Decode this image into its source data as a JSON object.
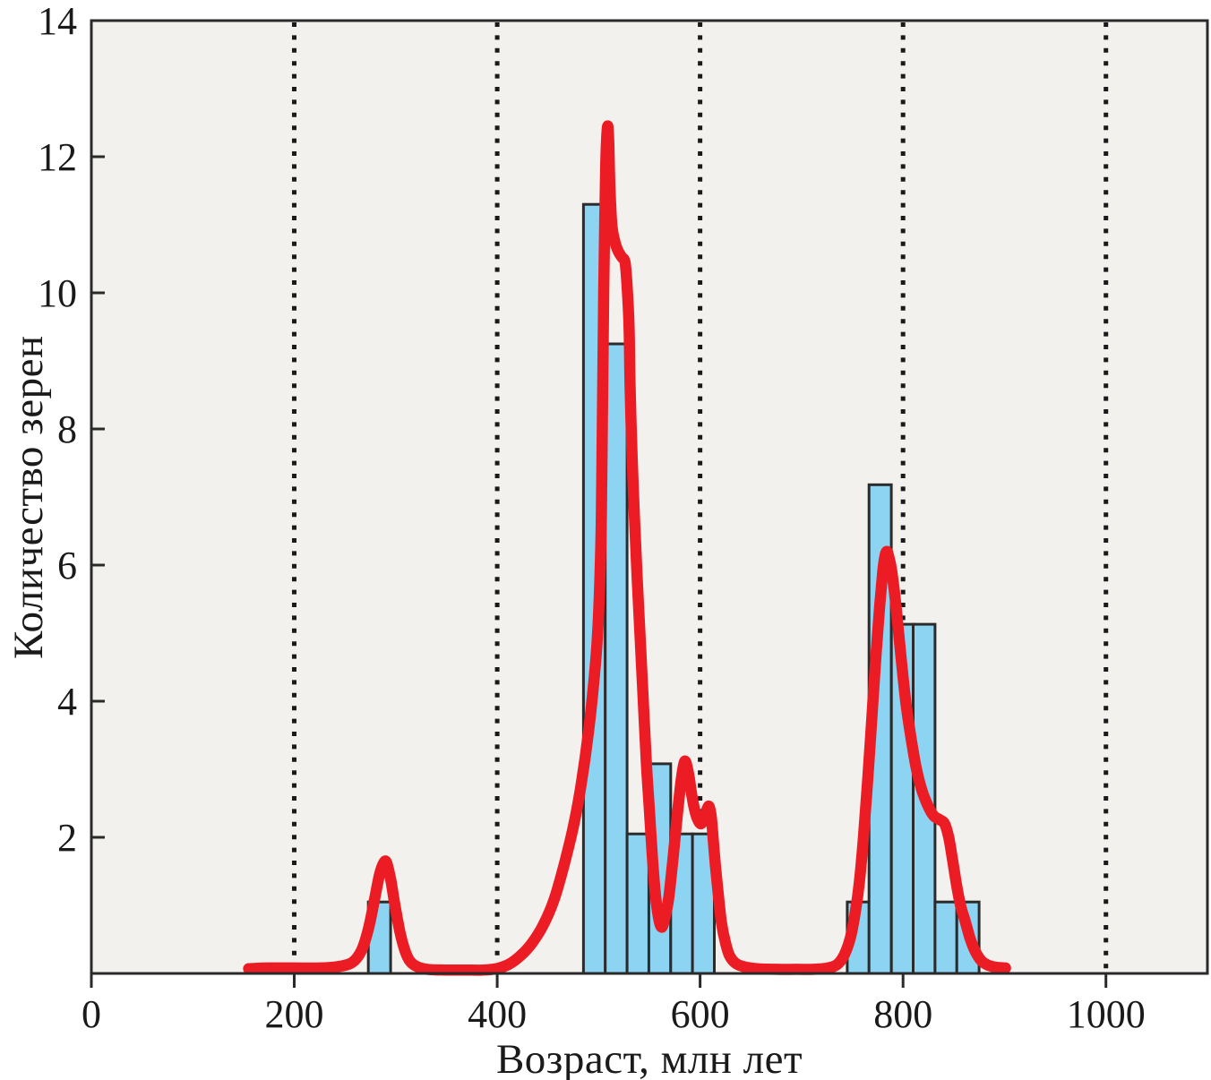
{
  "chart_data": {
    "type": "bar",
    "subtype": "histogram_with_kde_curve",
    "title": "",
    "xlabel": "Возраст, млн лет",
    "ylabel": "Количество зерен",
    "xlim": [
      0,
      1100
    ],
    "ylim": [
      0,
      14
    ],
    "x_ticks": [
      0,
      200,
      400,
      600,
      800,
      1000
    ],
    "x_tick_labels": [
      "0",
      "200",
      "400",
      "600",
      "800",
      "1000"
    ],
    "y_ticks": [
      0,
      2,
      4,
      6,
      8,
      10,
      12,
      14
    ],
    "y_tick_labels": [
      "0",
      "2",
      "4",
      "6",
      "8",
      "10",
      "12",
      "14"
    ],
    "grid": {
      "vertical_dotted_at": [
        200,
        400,
        600,
        800,
        1000
      ],
      "horizontal": false
    },
    "legend_position": "none",
    "bars": [
      {
        "from": 273,
        "to": 295,
        "height": 1.05
      },
      {
        "from": 485,
        "to": 506.5,
        "height": 11.3
      },
      {
        "from": 506.5,
        "to": 528,
        "height": 9.25
      },
      {
        "from": 528,
        "to": 549.5,
        "height": 2.05
      },
      {
        "from": 549.5,
        "to": 571,
        "height": 3.08
      },
      {
        "from": 571,
        "to": 592.5,
        "height": 2.05
      },
      {
        "from": 592.5,
        "to": 614,
        "height": 2.05
      },
      {
        "from": 745,
        "to": 766.5,
        "height": 1.05
      },
      {
        "from": 766.5,
        "to": 788.5,
        "height": 7.18
      },
      {
        "from": 788.5,
        "to": 810,
        "height": 5.13
      },
      {
        "from": 810,
        "to": 831.5,
        "height": 5.13
      },
      {
        "from": 831.5,
        "to": 853,
        "height": 1.05
      },
      {
        "from": 853,
        "to": 875,
        "height": 1.05
      }
    ],
    "series": [
      {
        "name": "kde-curve",
        "type": "line",
        "peaks_approx": [
          {
            "age": 290,
            "value": 1.63
          },
          {
            "age": 509,
            "value": 12.45
          },
          {
            "age": 585,
            "value": 3.1
          },
          {
            "age": 609,
            "value": 2.45
          },
          {
            "age": 784,
            "value": 6.2
          }
        ],
        "points": [
          [
            155,
            0.07
          ],
          [
            175,
            0.08
          ],
          [
            200,
            0.08
          ],
          [
            225,
            0.08
          ],
          [
            243,
            0.1
          ],
          [
            257,
            0.16
          ],
          [
            266,
            0.33
          ],
          [
            273,
            0.65
          ],
          [
            279,
            1.08
          ],
          [
            284,
            1.45
          ],
          [
            288,
            1.62
          ],
          [
            291,
            1.63
          ],
          [
            295,
            1.38
          ],
          [
            299,
            1.02
          ],
          [
            304,
            0.62
          ],
          [
            309,
            0.34
          ],
          [
            314,
            0.18
          ],
          [
            321,
            0.1
          ],
          [
            331,
            0.06
          ],
          [
            348,
            0.05
          ],
          [
            368,
            0.05
          ],
          [
            386,
            0.05
          ],
          [
            399,
            0.07
          ],
          [
            411,
            0.13
          ],
          [
            423,
            0.26
          ],
          [
            434,
            0.44
          ],
          [
            445,
            0.7
          ],
          [
            456,
            1.08
          ],
          [
            466,
            1.6
          ],
          [
            475,
            2.15
          ],
          [
            483,
            2.8
          ],
          [
            490,
            3.55
          ],
          [
            495,
            4.25
          ],
          [
            499,
            5.0
          ],
          [
            502,
            6.2
          ],
          [
            503,
            7.2
          ],
          [
            504,
            8.6
          ],
          [
            505,
            10.0
          ],
          [
            506,
            11.1
          ],
          [
            507,
            11.9
          ],
          [
            508,
            12.3
          ],
          [
            509,
            12.45
          ],
          [
            510,
            12.2
          ],
          [
            511,
            11.6
          ],
          [
            513,
            11.0
          ],
          [
            516,
            10.75
          ],
          [
            519,
            10.62
          ],
          [
            523,
            10.52
          ],
          [
            526,
            10.45
          ],
          [
            528,
            10.1
          ],
          [
            530,
            9.5
          ],
          [
            531,
            8.6
          ],
          [
            533,
            7.6
          ],
          [
            535,
            6.8
          ],
          [
            538,
            5.8
          ],
          [
            541,
            4.9
          ],
          [
            544,
            4.0
          ],
          [
            547,
            3.1
          ],
          [
            550,
            2.4
          ],
          [
            553,
            1.7
          ],
          [
            556,
            1.15
          ],
          [
            559,
            0.82
          ],
          [
            562,
            0.68
          ],
          [
            565,
            0.8
          ],
          [
            569,
            1.1
          ],
          [
            573,
            1.65
          ],
          [
            577,
            2.25
          ],
          [
            581,
            2.8
          ],
          [
            584,
            3.08
          ],
          [
            586,
            3.1
          ],
          [
            589,
            2.9
          ],
          [
            592,
            2.6
          ],
          [
            595,
            2.38
          ],
          [
            598,
            2.25
          ],
          [
            601,
            2.2
          ],
          [
            604,
            2.28
          ],
          [
            607,
            2.42
          ],
          [
            609,
            2.45
          ],
          [
            611,
            2.3
          ],
          [
            613,
            1.95
          ],
          [
            615,
            1.6
          ],
          [
            618,
            1.15
          ],
          [
            621,
            0.75
          ],
          [
            625,
            0.45
          ],
          [
            629,
            0.26
          ],
          [
            635,
            0.15
          ],
          [
            643,
            0.1
          ],
          [
            656,
            0.07
          ],
          [
            675,
            0.06
          ],
          [
            695,
            0.06
          ],
          [
            712,
            0.06
          ],
          [
            726,
            0.08
          ],
          [
            735,
            0.13
          ],
          [
            742,
            0.27
          ],
          [
            748,
            0.52
          ],
          [
            753,
            0.9
          ],
          [
            757,
            1.35
          ],
          [
            761,
            2.0
          ],
          [
            765,
            2.8
          ],
          [
            769,
            3.7
          ],
          [
            773,
            4.6
          ],
          [
            777,
            5.4
          ],
          [
            780,
            5.9
          ],
          [
            782,
            6.12
          ],
          [
            784,
            6.2
          ],
          [
            786,
            6.12
          ],
          [
            789,
            5.9
          ],
          [
            793,
            5.4
          ],
          [
            798,
            4.65
          ],
          [
            803,
            3.95
          ],
          [
            808,
            3.45
          ],
          [
            813,
            3.02
          ],
          [
            818,
            2.72
          ],
          [
            824,
            2.48
          ],
          [
            830,
            2.32
          ],
          [
            836,
            2.26
          ],
          [
            841,
            2.2
          ],
          [
            845,
            2.0
          ],
          [
            849,
            1.65
          ],
          [
            853,
            1.28
          ],
          [
            857,
            0.98
          ],
          [
            861,
            0.78
          ],
          [
            866,
            0.52
          ],
          [
            871,
            0.33
          ],
          [
            877,
            0.19
          ],
          [
            884,
            0.12
          ],
          [
            892,
            0.09
          ],
          [
            901,
            0.08
          ]
        ]
      }
    ],
    "colors": {
      "bar_fill": "#8dd3f2",
      "bar_stroke": "#2b2b2b",
      "kde": "#ec1c24",
      "plot_bg": "#f2f1ee",
      "frame": "#2a2a2a",
      "grid": "#1a1a1a",
      "text": "#1a1a1a",
      "page_bg": "#ffffff"
    }
  }
}
